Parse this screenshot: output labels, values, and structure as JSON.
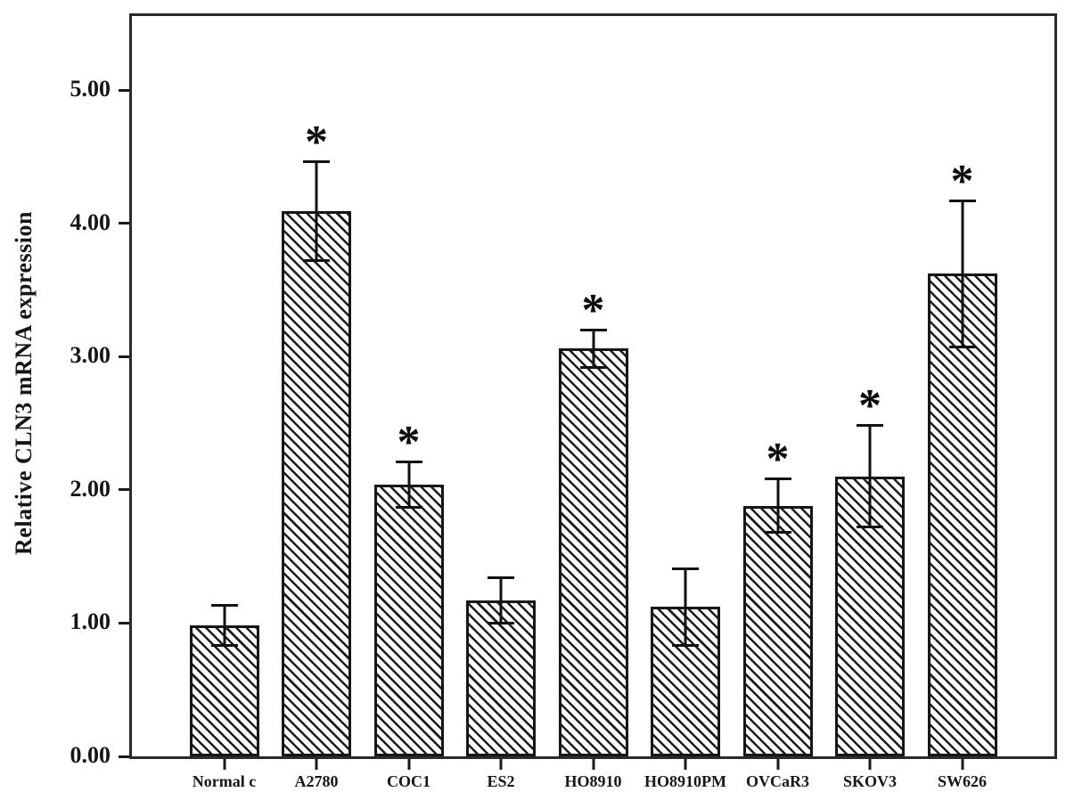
{
  "chart_data": {
    "type": "bar",
    "title": "",
    "ylabel": "Relative CLN3 mRNA expression",
    "xlabel": "",
    "categories": [
      "Normal c",
      "A2780",
      "COC1",
      "ES2",
      "HO8910",
      "HO8910PM",
      "OVCaR3",
      "SKOV3",
      "SW626"
    ],
    "values": [
      0.98,
      4.09,
      2.04,
      1.17,
      3.06,
      1.12,
      1.88,
      2.1,
      3.62
    ],
    "error_bars": [
      0.16,
      0.38,
      0.18,
      0.18,
      0.15,
      0.3,
      0.21,
      0.39,
      0.56
    ],
    "significance": [
      false,
      true,
      true,
      false,
      true,
      false,
      true,
      true,
      true
    ],
    "significance_marker": "*",
    "yticks": {
      "values": [
        0,
        1,
        2,
        3,
        4,
        5
      ],
      "labels": [
        "0.00",
        "1.00",
        "2.00",
        "3.00",
        "4.00",
        "5.00"
      ]
    },
    "ylim": [
      0,
      5.55
    ],
    "grid": false,
    "legend_position": "none",
    "bar_fill": "diagonal-hatch",
    "colors": {
      "line": "#1a1a1a",
      "background": "#ffffff"
    }
  }
}
